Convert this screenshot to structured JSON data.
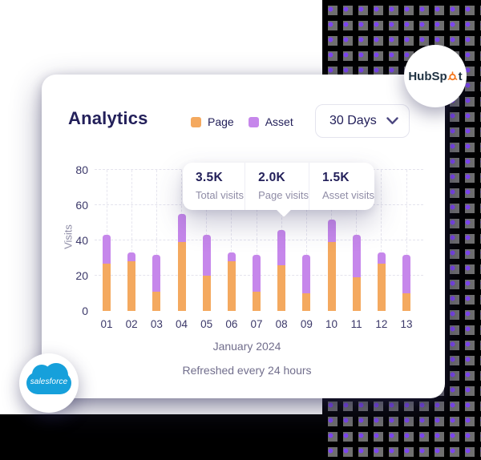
{
  "page": {
    "background": "#FFFFFF",
    "bottom_band_color": "#000000"
  },
  "decor": {
    "pattern_bg": "#000000",
    "pattern_square_color": "#6F6F6F",
    "pattern_dot_color": "#7C45F0"
  },
  "badges": {
    "hubspot": {
      "prefix": "HubSp",
      "suffix": "t",
      "text_color": "#213343",
      "sprocket_color": "#F4781F"
    },
    "salesforce": {
      "label": "salesforce",
      "cloud_color": "#16A0DB"
    }
  },
  "card": {
    "title": "Analytics",
    "legend": [
      {
        "label": "Page",
        "color": "#F4A95F"
      },
      {
        "label": "Asset",
        "color": "#C687EB"
      }
    ],
    "dropdown": {
      "value": "30 Days"
    },
    "tooltip": {
      "items": [
        {
          "value": "3.5K",
          "label": "Total visits"
        },
        {
          "value": "2.0K",
          "label": "Page visits"
        },
        {
          "value": "1.5K",
          "label": "Asset visits"
        }
      ]
    },
    "footer": {
      "caption": "January 2024",
      "refresh_note": "Refreshed every 24 hours"
    }
  },
  "chart_data": {
    "type": "bar",
    "stacked": true,
    "categories": [
      "01",
      "02",
      "03",
      "04",
      "05",
      "06",
      "07",
      "08",
      "09",
      "10",
      "11",
      "12",
      "13"
    ],
    "series": [
      {
        "name": "Page",
        "color": "#F4A95F",
        "values": [
          27,
          28,
          11,
          39,
          20,
          28,
          11,
          26,
          10,
          39,
          19,
          27,
          10
        ]
      },
      {
        "name": "Asset",
        "color": "#C687EB",
        "values": [
          16,
          5,
          21,
          16,
          23,
          5,
          21,
          20,
          22,
          13,
          24,
          6,
          22
        ]
      }
    ],
    "title": "Analytics",
    "xlabel": "January 2024",
    "ylabel": "Visits",
    "ylim": [
      0,
      80
    ],
    "yticks": [
      0,
      20,
      40,
      60,
      80
    ],
    "grid": true,
    "legend_position": "top",
    "tooltip_anchor_category": "08"
  }
}
